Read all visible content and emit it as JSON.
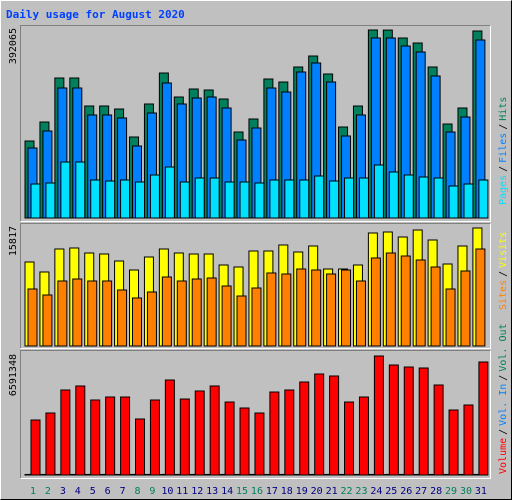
{
  "title": "Daily usage for August 2020",
  "chart_data": [
    {
      "type": "bar",
      "ylim": [
        0,
        392065
      ],
      "yticks": [
        392065
      ],
      "legend_separator": "/",
      "series": [
        {
          "name": "Pages",
          "color": "#00e0ff",
          "values": [
            70900,
            72990,
            116780,
            116780,
            79250,
            77160,
            79250,
            75070,
            89670,
            106360,
            75070,
            83420,
            83420,
            75070,
            75070,
            72990,
            79250,
            79250,
            79250,
            87590,
            77160,
            83420,
            83420,
            110530,
            95930,
            89670,
            85500,
            83420,
            66730,
            70900,
            79250
          ]
        },
        {
          "name": "Files",
          "color": "#0080ff",
          "values": [
            145980,
            181430,
            271100,
            271100,
            214800,
            214800,
            208540,
            150150,
            218970,
            281530,
            237740,
            250250,
            252330,
            229390,
            162660,
            187690,
            271100,
            262760,
            304470,
            323240,
            283610,
            171000,
            214800,
            375370,
            375370,
            358690,
            346180,
            296130,
            179340,
            210630,
            371200
          ]
        },
        {
          "name": "Hits",
          "color": "#00805c",
          "values": [
            160600,
            200200,
            291960,
            291960,
            233560,
            233560,
            227310,
            168920,
            237740,
            302380,
            252330,
            269020,
            266930,
            248160,
            179340,
            206450,
            289870,
            283610,
            314890,
            337830,
            300300,
            189770,
            233560,
            392065,
            391900,
            375370,
            364940,
            314890,
            196030,
            229390,
            389970
          ]
        }
      ]
    },
    {
      "type": "bar",
      "ylim": [
        0,
        15817
      ],
      "yticks": [
        15817
      ],
      "legend_separator": "/",
      "series": [
        {
          "name": "Sites",
          "color": "#ff8000",
          "values": [
            7640,
            6836,
            8713,
            8981,
            8713,
            8713,
            7506,
            6434,
            7238,
            9249,
            8713,
            8981,
            9115,
            8042,
            6702,
            7774,
            9785,
            9651,
            10321,
            10187,
            9651,
            10187,
            8713,
            11796,
            12466,
            12064,
            11527,
            10589,
            7640,
            10053,
            13002
          ]
        },
        {
          "name": "Visits",
          "color": "#ffff00",
          "values": [
            11259,
            9919,
            13002,
            13136,
            12466,
            12332,
            11393,
            10187,
            11930,
            13002,
            12466,
            12332,
            12332,
            10857,
            10589,
            12734,
            12734,
            13538,
            12600,
            13404,
            10321,
            10321,
            10857,
            15147,
            15281,
            14610,
            15549,
            14208,
            10991,
            13404,
            15817
          ]
        }
      ]
    },
    {
      "type": "bar",
      "ylim": [
        0,
        6591348
      ],
      "yticks": [
        6591348
      ],
      "legend_separator": "/",
      "categories": [
        "1",
        "2",
        "3",
        "4",
        "5",
        "6",
        "7",
        "8",
        "9",
        "10",
        "11",
        "12",
        "13",
        "14",
        "15",
        "16",
        "17",
        "18",
        "19",
        "20",
        "21",
        "22",
        "23",
        "24",
        "25",
        "26",
        "27",
        "28",
        "29",
        "30",
        "31"
      ],
      "category_colors": [
        "#00805c",
        "#00805c",
        "#000080",
        "#000080",
        "#000080",
        "#000080",
        "#000080",
        "#00805c",
        "#00805c",
        "#000080",
        "#000080",
        "#000080",
        "#000080",
        "#000080",
        "#00805c",
        "#00805c",
        "#000080",
        "#000080",
        "#000080",
        "#000080",
        "#000080",
        "#00805c",
        "#00805c",
        "#000080",
        "#000080",
        "#000080",
        "#000080",
        "#000080",
        "#00805c",
        "#00805c",
        "#000080"
      ],
      "series": [
        {
          "name": "Volume",
          "color": "#ff0000",
          "values": [
            3046000,
            3434000,
            4708000,
            4930000,
            4154000,
            4320000,
            4320000,
            3102000,
            4154000,
            5262000,
            4209000,
            4653000,
            4930000,
            4043000,
            3711000,
            3434000,
            4597000,
            4708000,
            5151000,
            5594000,
            5484000,
            4043000,
            4320000,
            6591348,
            6093000,
            5982000,
            5927000,
            4985000,
            3600000,
            3877000,
            6259000
          ]
        },
        {
          "name": "Vol. In",
          "color": "#0080ff",
          "values": [
            30000,
            30000,
            30000,
            30000,
            30000,
            30000,
            30000,
            30000,
            30000,
            30000,
            30000,
            30000,
            30000,
            30000,
            30000,
            30000,
            30000,
            30000,
            30000,
            30000,
            30000,
            30000,
            30000,
            30000,
            30000,
            30000,
            30000,
            30000,
            30000,
            30000,
            30000
          ]
        },
        {
          "name": "Vol. Out",
          "color": "#00805c",
          "values": [
            30000,
            30000,
            30000,
            30000,
            30000,
            30000,
            30000,
            30000,
            30000,
            30000,
            30000,
            30000,
            30000,
            30000,
            30000,
            30000,
            30000,
            30000,
            30000,
            30000,
            30000,
            30000,
            30000,
            30000,
            30000,
            30000,
            30000,
            30000,
            30000,
            30000,
            30000
          ]
        }
      ]
    }
  ]
}
